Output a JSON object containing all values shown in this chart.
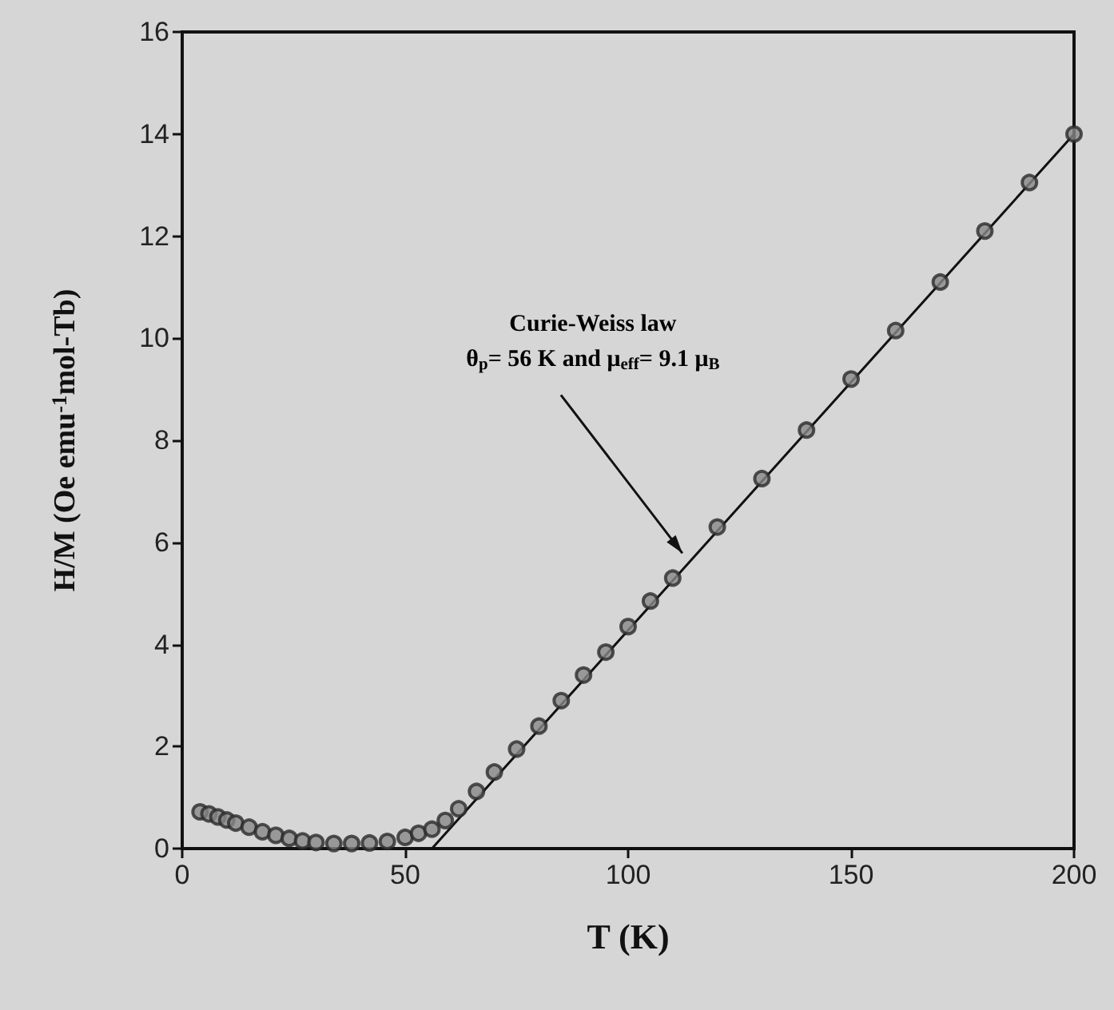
{
  "chart_data": {
    "type": "scatter",
    "xlabel": "T (K)",
    "ylabel": "H/M (Oe emu$^{-1}$mol-Tb)",
    "xlim": [
      0,
      200
    ],
    "xticks": [
      0,
      50,
      100,
      150,
      200
    ],
    "ylim": [
      0,
      16
    ],
    "yticks": [
      0,
      2,
      4,
      6,
      8,
      10,
      12,
      14,
      16
    ],
    "grid": false,
    "annotations": [
      "Curie-Weiss law\nθ$_{p}$= 56 K and μ$_{eff}$= 9.1 μ$_{B}$"
    ],
    "series": [
      {
        "color": "#2a2a2a",
        "marker": "circle",
        "x": [
          4,
          6,
          8,
          10,
          12,
          15,
          18,
          21,
          24,
          27,
          30,
          34,
          38,
          42,
          46,
          50,
          53,
          56,
          59,
          62,
          66,
          70,
          75,
          80,
          85,
          90,
          95,
          100,
          105,
          110,
          120,
          130,
          140,
          150,
          160,
          170,
          180,
          190,
          200
        ],
        "values": [
          0.72,
          0.68,
          0.62,
          0.56,
          0.5,
          0.42,
          0.33,
          0.26,
          0.2,
          0.15,
          0.12,
          0.1,
          0.1,
          0.11,
          0.14,
          0.22,
          0.3,
          0.38,
          0.55,
          0.78,
          1.12,
          1.5,
          1.95,
          2.4,
          2.9,
          3.4,
          3.85,
          4.35,
          4.85,
          5.3,
          6.3,
          7.25,
          8.2,
          9.2,
          10.15,
          11.1,
          12.1,
          13.05,
          14.0
        ]
      },
      {
        "type": "line",
        "color": "#111111",
        "marker": "none",
        "line_style": "solid",
        "x": [
          56,
          200
        ],
        "values": [
          0,
          14
        ]
      }
    ]
  }
}
